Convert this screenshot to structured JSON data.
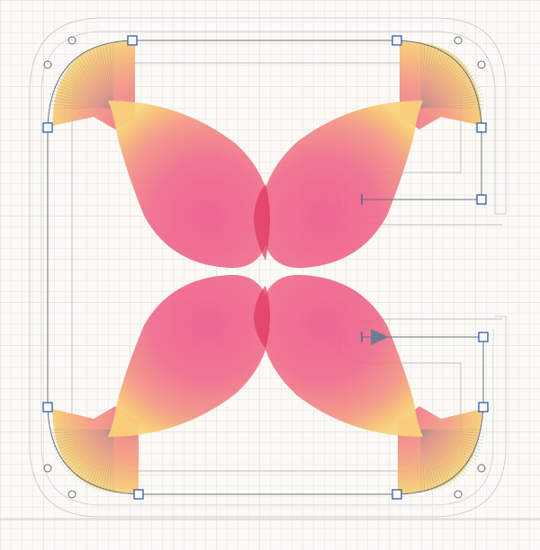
{
  "canvas": {
    "background": "#fbfaf6",
    "grid_color": "#e6e3da",
    "grid_major_color": "#d8d4c8"
  },
  "colors": {
    "petal_core": "#ef5f8c",
    "petal_mid": "#f07a8c",
    "petal_edge": "#f6b36a",
    "petal_rim": "#f8cf6e",
    "petal_overlap": "#e0355f",
    "outline": "#c7c7c7",
    "path_line": "#7a7a86",
    "handle_stroke": "#2f5aa8",
    "handle_fill": "#ffffff",
    "arrow": "#6e7c90",
    "corner_blend": "#9a9a9a"
  },
  "icons": {
    "anchor": "square-anchor-icon",
    "corner_point": "circle-control-point-icon",
    "direction": "arrow-right-icon"
  }
}
